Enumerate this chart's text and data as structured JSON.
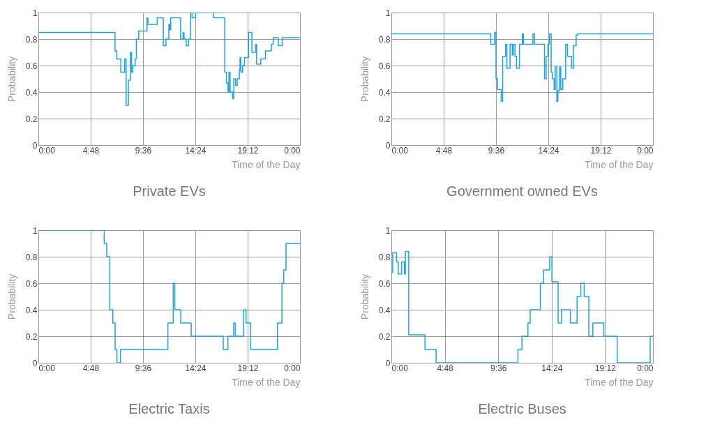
{
  "chart_data": [
    {
      "type": "step",
      "title": "Private EVs",
      "xlabel": "Time of the Day",
      "ylabel": "Probability",
      "color": "#1aa3e8",
      "grid": true,
      "xlim": [
        0,
        24
      ],
      "ylim": [
        0,
        1
      ],
      "yticks": [
        0,
        0.2,
        0.4,
        0.6,
        0.8,
        1
      ],
      "xticks": [
        {
          "value": 0,
          "label": "0:00"
        },
        {
          "value": 4.8,
          "label": "4:48"
        },
        {
          "value": 9.6,
          "label": "9:36"
        },
        {
          "value": 14.4,
          "label": "14:24"
        },
        {
          "value": 19.2,
          "label": "19:12"
        },
        {
          "value": 24,
          "label": "0:00"
        }
      ],
      "x": [
        0,
        7.03,
        7.2,
        7.56,
        7.92,
        8.05,
        8.26,
        8.45,
        8.55,
        8.67,
        8.88,
        8.99,
        9.2,
        9.97,
        10.05,
        10.9,
        11.46,
        11.7,
        11.97,
        12.06,
        12.14,
        13.05,
        13.27,
        13.37,
        13.56,
        13.78,
        13.97,
        14.1,
        14.42,
        16.08,
        17.1,
        17.25,
        17.4,
        17.48,
        17.59,
        17.82,
        17.93,
        18.1,
        18.25,
        18.44,
        18.5,
        18.57,
        18.74,
        18.91,
        19.29,
        19.59,
        19.93,
        20.02,
        20.4,
        20.83,
        21.38,
        21.55,
        22,
        22.36,
        24
      ],
      "values": [
        0.85,
        0.71,
        0.65,
        0.55,
        0.65,
        0.3,
        0.49,
        0.7,
        0.55,
        0.6,
        0.65,
        0.8,
        0.86,
        0.96,
        0.91,
        0.96,
        0.75,
        0.8,
        0.91,
        0.87,
        0.96,
        0.8,
        0.85,
        0.8,
        0.75,
        0.8,
        1,
        0.96,
        1,
        0.96,
        0.55,
        0.47,
        0.4,
        0.55,
        0.4,
        0.35,
        0.5,
        0.45,
        0.5,
        0.57,
        0.66,
        0.55,
        0.6,
        0.66,
        0.85,
        0.7,
        0.76,
        0.61,
        0.65,
        0.71,
        0.76,
        0.81,
        0.75,
        0.81,
        0.81
      ]
    },
    {
      "type": "step",
      "title": "Government owned EVs",
      "xlabel": "Time of the Day",
      "ylabel": "Probability",
      "color": "#1aa3e8",
      "grid": true,
      "xlim": [
        0,
        24
      ],
      "ylim": [
        0,
        1
      ],
      "yticks": [
        0,
        0.2,
        0.4,
        0.6,
        0.8,
        1
      ],
      "xticks": [
        {
          "value": 0,
          "label": "0:00"
        },
        {
          "value": 4.8,
          "label": "4:48"
        },
        {
          "value": 9.6,
          "label": "9:36"
        },
        {
          "value": 14.4,
          "label": "14:24"
        },
        {
          "value": 19.2,
          "label": "19:12"
        },
        {
          "value": 24,
          "label": "0:00"
        }
      ],
      "x": [
        0,
        9.12,
        9.47,
        9.6,
        9.74,
        10.07,
        10.21,
        10.48,
        10.6,
        10.89,
        11.09,
        11.19,
        11.34,
        11.48,
        11.75,
        12.01,
        12.11,
        12.99,
        13.13,
        14.05,
        14.2,
        14.36,
        14.5,
        14.66,
        14.77,
        14.93,
        15.03,
        15.18,
        15.28,
        15.44,
        15.54,
        15.73,
        15.99,
        16.16,
        16.54,
        16.71,
        16.95,
        17.08,
        24
      ],
      "values": [
        0.84,
        0.76,
        0.85,
        0.5,
        0.42,
        0.33,
        0.67,
        0.76,
        0.58,
        0.76,
        0.68,
        0.76,
        0.67,
        0.58,
        0.76,
        0.84,
        0.76,
        0.84,
        0.76,
        0.5,
        0.67,
        0.76,
        0.84,
        0.55,
        0.5,
        0.42,
        0.59,
        0.33,
        0.41,
        0.59,
        0.42,
        0.5,
        0.76,
        0.67,
        0.58,
        0.75,
        0.83,
        0.84,
        0.84
      ]
    },
    {
      "type": "step",
      "title": "Electric Taxis",
      "xlabel": "Time of the Day",
      "ylabel": "Probability",
      "color": "#1aa3e8",
      "grid": true,
      "xlim": [
        0,
        24
      ],
      "ylim": [
        0,
        1
      ],
      "yticks": [
        0,
        0.2,
        0.4,
        0.6,
        0.8,
        1
      ],
      "xticks": [
        {
          "value": 0,
          "label": "0:00"
        },
        {
          "value": 4.8,
          "label": "4:48"
        },
        {
          "value": 9.6,
          "label": "9:36"
        },
        {
          "value": 14.4,
          "label": "14:24"
        },
        {
          "value": 19.2,
          "label": "19:12"
        },
        {
          "value": 24,
          "label": "0:00"
        }
      ],
      "x": [
        0,
        6.04,
        6.27,
        6.55,
        6.83,
        7.04,
        7.21,
        7.53,
        11.88,
        12.37,
        12.52,
        13.06,
        14.02,
        16.96,
        17.39,
        17.92,
        18.07,
        18.84,
        19.05,
        19.48,
        21.93,
        22.34,
        22.51,
        22.72,
        24
      ],
      "values": [
        1,
        0.9,
        0.8,
        0.4,
        0.3,
        0.1,
        0,
        0.1,
        0.3,
        0.6,
        0.4,
        0.3,
        0.2,
        0.1,
        0.2,
        0.3,
        0.2,
        0.4,
        0.3,
        0.1,
        0.3,
        0.6,
        0.7,
        0.9,
        0.9
      ]
    },
    {
      "type": "step",
      "title": "Electric Buses",
      "xlabel": "Time of the Day",
      "ylabel": "Probability",
      "color": "#1aa3e8",
      "grid": true,
      "xlim": [
        0,
        23.5
      ],
      "ylim": [
        0,
        1
      ],
      "yticks": [
        0,
        0.2,
        0.4,
        0.6,
        0.8,
        1
      ],
      "xticks": [
        {
          "value": 0,
          "label": "0:00"
        },
        {
          "value": 4.8,
          "label": "4:48"
        },
        {
          "value": 9.6,
          "label": "9:36"
        },
        {
          "value": 14.4,
          "label": "14:24"
        },
        {
          "value": 19.2,
          "label": "19:12"
        },
        {
          "value": 23.5,
          "label": "0:00"
        }
      ],
      "x": [
        0,
        0.12,
        0.46,
        0.62,
        0.92,
        1.16,
        1.26,
        1.56,
        3.02,
        4.02,
        11.37,
        11.73,
        12.27,
        12.47,
        13.38,
        13.68,
        14.22,
        14.42,
        14.98,
        15.28,
        16.08,
        16.68,
        17.02,
        17.32,
        17.74,
        18.1,
        19.08,
        20.28,
        23.25,
        23.5
      ],
      "values": [
        0.68,
        0.83,
        0.76,
        0.67,
        0.76,
        0.67,
        0.84,
        0.21,
        0.1,
        0,
        0.1,
        0.2,
        0.3,
        0.4,
        0.6,
        0.7,
        0.8,
        0.61,
        0.3,
        0.4,
        0.3,
        0.5,
        0.6,
        0.5,
        0.2,
        0.3,
        0.2,
        0,
        0.2,
        0.2
      ]
    }
  ]
}
